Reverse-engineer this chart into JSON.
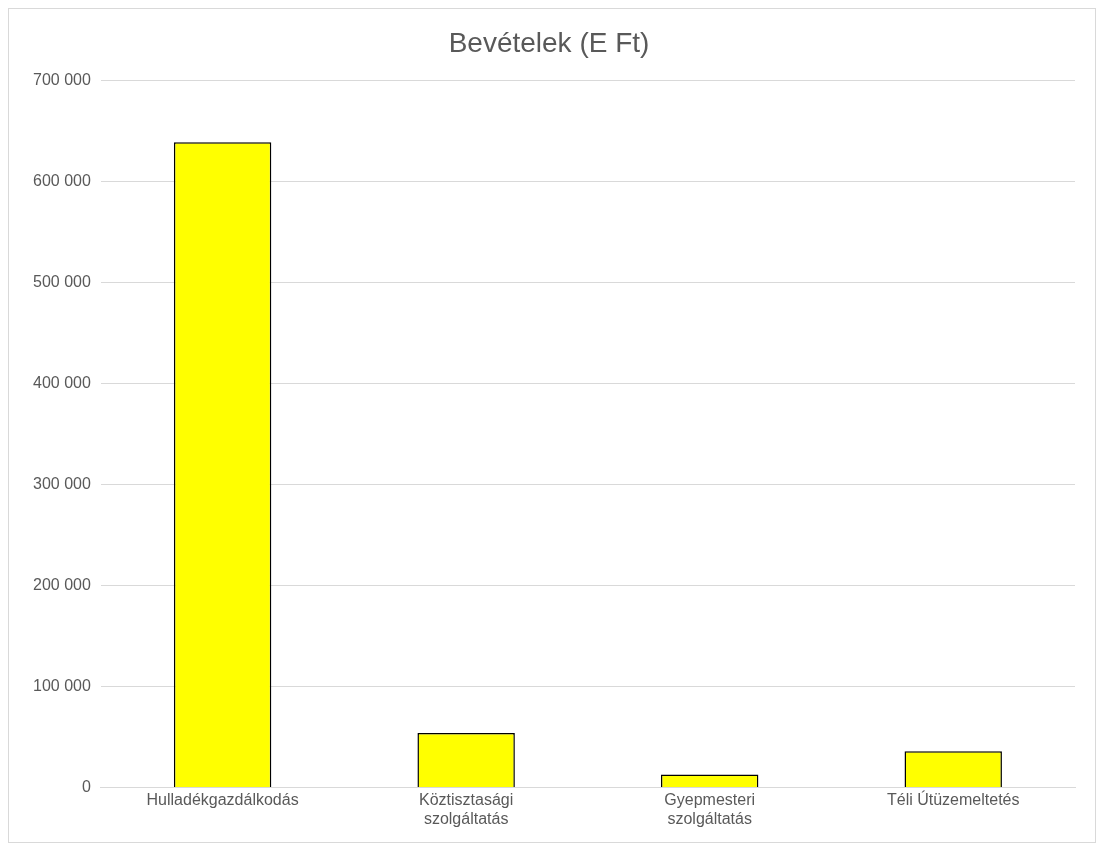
{
  "chart_data": {
    "type": "bar",
    "title": "Bevételek (E Ft)",
    "categories": [
      "Hulladékgazdálkodás",
      "Köztisztasági szolgáltatás",
      "Gyepmesteri szolgáltatás",
      "Téli Útüzemeltetés"
    ],
    "values": [
      639000,
      54000,
      13000,
      36000
    ],
    "color": "#ffff00",
    "ylim": [
      0,
      700000
    ],
    "yticks": [
      {
        "value": 0,
        "label": "0"
      },
      {
        "value": 100000,
        "label": "100 000"
      },
      {
        "value": 200000,
        "label": "200 000"
      },
      {
        "value": 300000,
        "label": "300 000"
      },
      {
        "value": 400000,
        "label": "400 000"
      },
      {
        "value": 500000,
        "label": "500 000"
      },
      {
        "value": 600000,
        "label": "600 000"
      },
      {
        "value": 700000,
        "label": "700 000"
      }
    ],
    "grid": "y",
    "legend": false
  }
}
